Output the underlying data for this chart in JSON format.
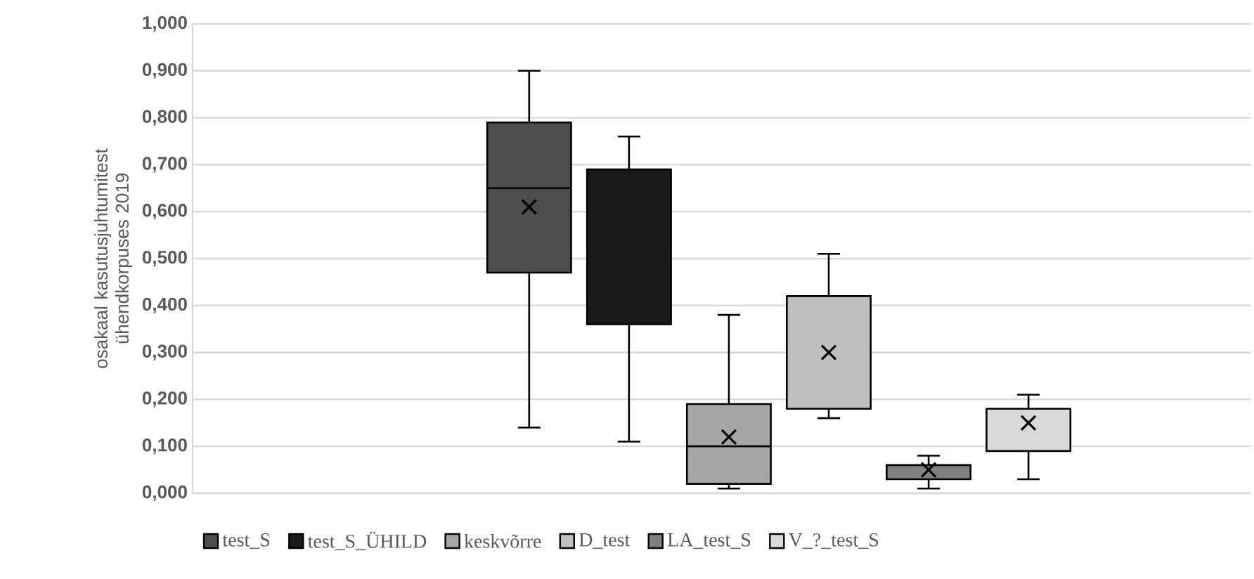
{
  "chart_data": {
    "type": "box",
    "ylabel": "osakaal kasutusjuhtumitest ühendkorpuses 2019",
    "categories": [
      null
    ],
    "ylim": [
      0,
      1
    ],
    "yticks": [
      {
        "value": 0,
        "label": "0,000"
      },
      {
        "value": 0.1,
        "label": "0,100"
      },
      {
        "value": 0.2,
        "label": "0,200"
      },
      {
        "value": 0.3,
        "label": "0,300"
      },
      {
        "value": 0.4,
        "label": "0,400"
      },
      {
        "value": 0.5,
        "label": "0,500"
      },
      {
        "value": 0.6,
        "label": "0,600"
      },
      {
        "value": 0.7,
        "label": "0,700"
      },
      {
        "value": 0.8,
        "label": "0,800"
      },
      {
        "value": 0.9,
        "label": "0,900"
      },
      {
        "value": 1,
        "label": "1,000"
      }
    ],
    "grid": "y",
    "legend": "bottom",
    "tick_labels": "y",
    "series": [
      {
        "name": "test_S",
        "color": "#4d4d4d",
        "boxes": [
          {
            "low": 0.14,
            "q1": 0.47,
            "median": 0.65,
            "q3": 0.79,
            "high": 0.9,
            "mean": 0.61
          }
        ]
      },
      {
        "name": "test_S_ÜHILD",
        "color": "#1a1a1a",
        "boxes": [
          {
            "low": 0.11,
            "q1": 0.36,
            "median": null,
            "q3": 0.69,
            "high": 0.76
          }
        ]
      },
      {
        "name": "keskvõrre",
        "color": "#a6a6a6",
        "boxes": [
          {
            "low": 0.01,
            "q1": 0.02,
            "median": 0.1,
            "q3": 0.19,
            "high": 0.38,
            "mean": 0.12
          }
        ]
      },
      {
        "name": "D_test",
        "color": "#bfbfbf",
        "boxes": [
          {
            "low": 0.16,
            "q1": 0.18,
            "median": null,
            "q3": 0.42,
            "high": 0.51,
            "mean": 0.3
          }
        ]
      },
      {
        "name": "LA_test_S",
        "color": "#808080",
        "boxes": [
          {
            "low": 0.01,
            "q1": 0.03,
            "median": null,
            "q3": 0.06,
            "high": 0.08,
            "mean": 0.05
          }
        ]
      },
      {
        "name": "V_?_test_S",
        "color": "#d9d9d9",
        "boxes": [
          {
            "low": 0.03,
            "q1": 0.09,
            "median": null,
            "q3": 0.18,
            "high": 0.21,
            "mean": 0.15
          }
        ]
      }
    ]
  }
}
